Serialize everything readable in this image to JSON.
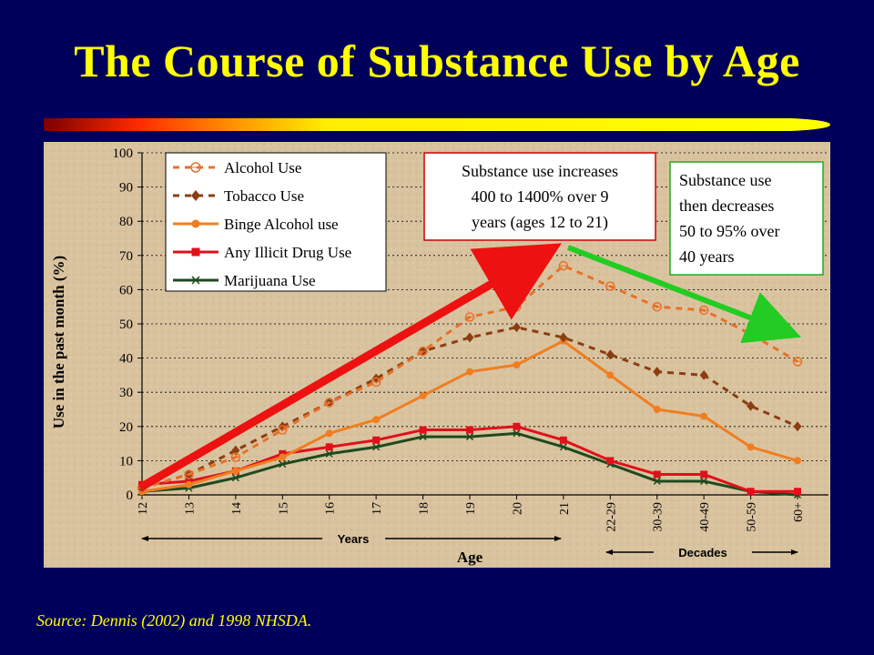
{
  "slide": {
    "title": "The Course of Substance Use by Age",
    "source": "Source: Dennis (2002) and 1998 NHSDA."
  },
  "colors": {
    "background": "#00005a",
    "title": "#ffff00",
    "alcohol": "#e8702a",
    "tobacco": "#8b3e12",
    "binge": "#f07e20",
    "illicit": "#e0101a",
    "marijuana": "#1e4a1e",
    "increase_arrow": "#ee1111",
    "decrease_arrow": "#22cc22"
  },
  "annotations": {
    "increase": {
      "lines": [
        "Substance use increases",
        "400 to 1400% over 9",
        "years (ages 12 to 21)"
      ]
    },
    "decrease": {
      "lines": [
        "Substance use",
        "then decreases",
        "50 to 95% over",
        "40 years"
      ]
    },
    "years_label": "Years",
    "decades_label": "Decades"
  },
  "chart_data": {
    "type": "line",
    "xlabel": "Age",
    "ylabel": "Use in the past month (%)",
    "ylim": [
      0,
      100
    ],
    "yticks": [
      0,
      10,
      20,
      30,
      40,
      50,
      60,
      70,
      80,
      90,
      100
    ],
    "grid": "horizontal dotted",
    "legend_position": "top-left",
    "categories": [
      "12",
      "13",
      "14",
      "15",
      "16",
      "17",
      "18",
      "19",
      "20",
      "21",
      "22-29",
      "30-39",
      "40-49",
      "50-59",
      "60+"
    ],
    "series": [
      {
        "name": "Alcohol Use",
        "color_key": "alcohol",
        "line": "dashed",
        "marker": "circle-open",
        "values": [
          2,
          6,
          11,
          19,
          27,
          33,
          42,
          52,
          55,
          67,
          61,
          55,
          54,
          47,
          39
        ]
      },
      {
        "name": "Tobacco Use",
        "color_key": "tobacco",
        "line": "dashed",
        "marker": "diamond",
        "values": [
          2,
          6,
          13,
          20,
          27,
          34,
          42,
          46,
          49,
          46,
          41,
          36,
          35,
          26,
          20
        ]
      },
      {
        "name": "Binge Alcohol use",
        "color_key": "binge",
        "line": "solid",
        "marker": "circle",
        "values": [
          1,
          3,
          7,
          11,
          18,
          22,
          29,
          36,
          38,
          45,
          35,
          25,
          23,
          14,
          10
        ]
      },
      {
        "name": "Any Illicit Drug Use",
        "color_key": "illicit",
        "line": "solid",
        "marker": "square",
        "values": [
          3,
          4,
          7,
          12,
          14,
          16,
          19,
          19,
          20,
          16,
          10,
          6,
          6,
          1,
          1
        ]
      },
      {
        "name": "Marijuana Use",
        "color_key": "marijuana",
        "line": "solid",
        "marker": "x",
        "values": [
          1,
          2,
          5,
          9,
          12,
          14,
          17,
          17,
          18,
          14,
          9,
          4,
          4,
          1,
          0
        ]
      }
    ]
  }
}
